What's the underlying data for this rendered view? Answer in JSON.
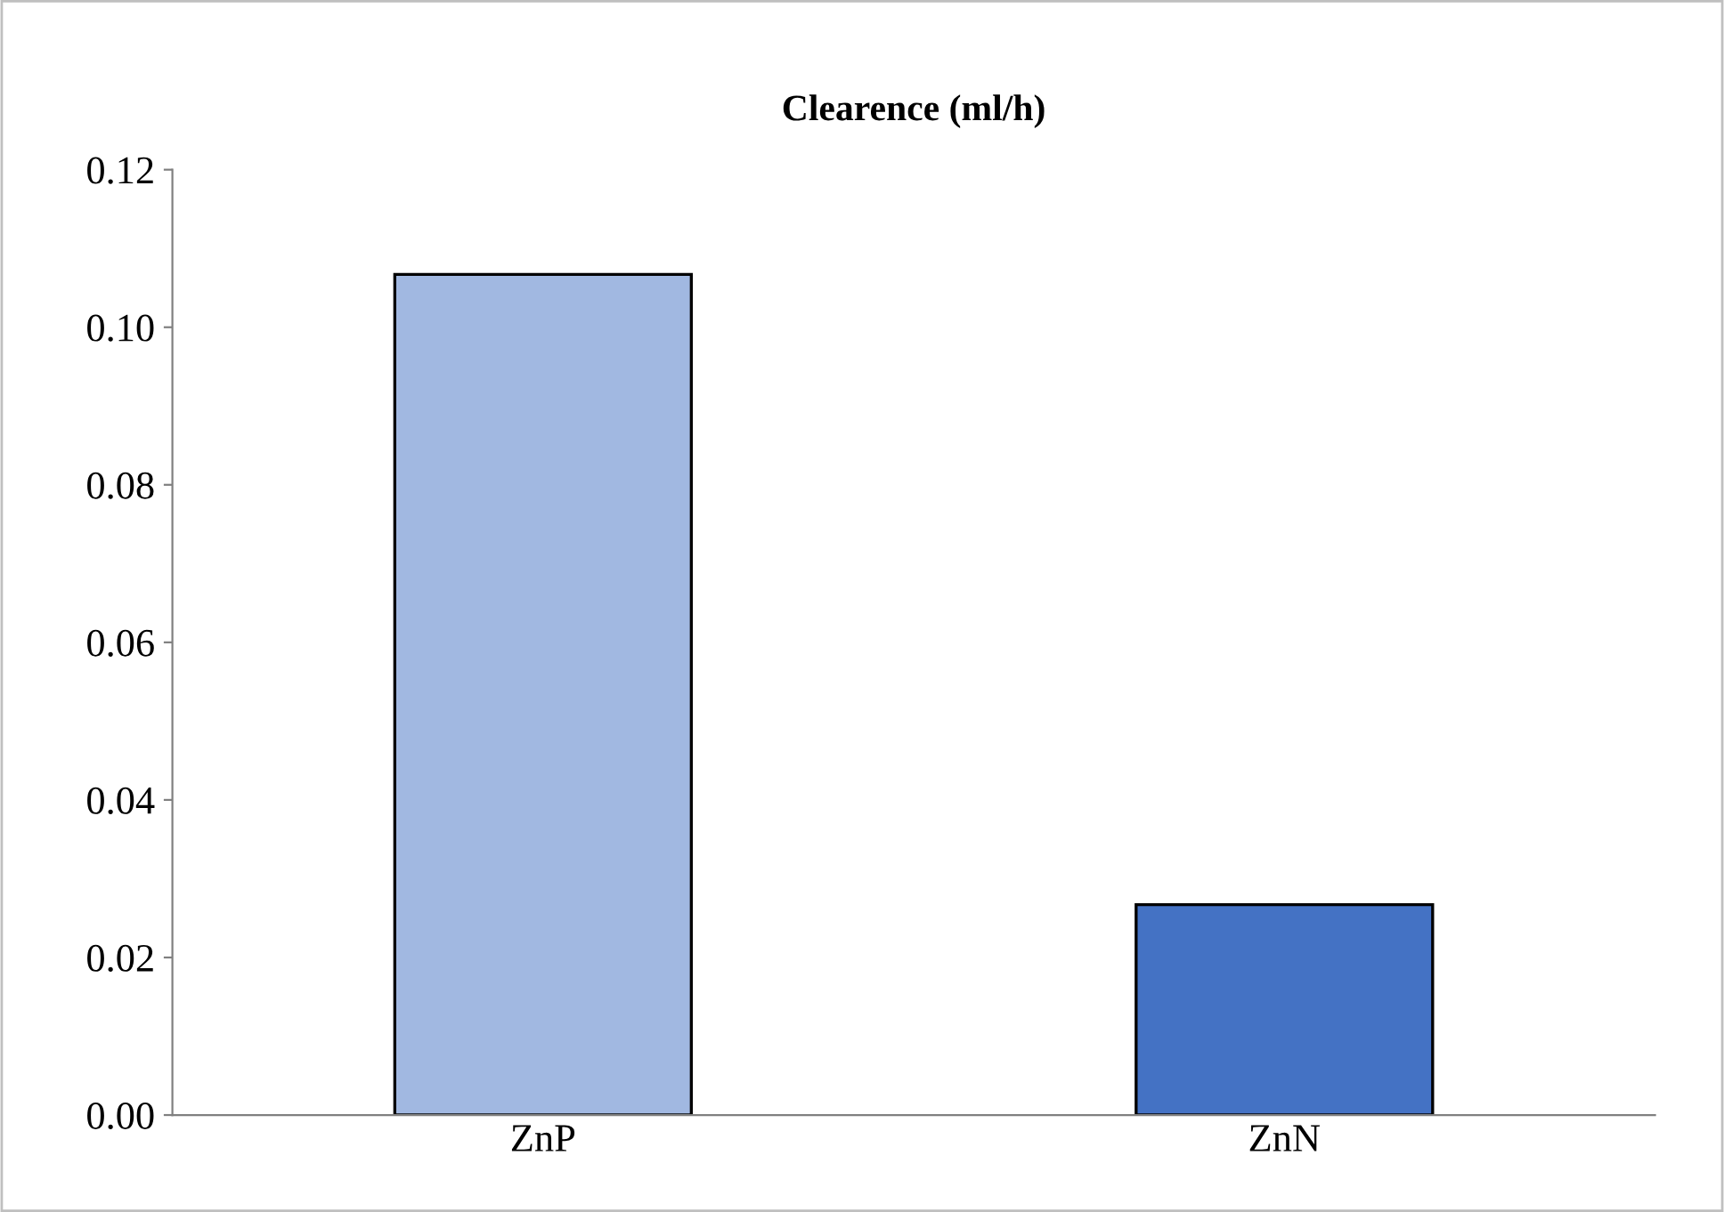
{
  "chart_data": {
    "type": "bar",
    "title": "Clearence (ml/h)",
    "categories": [
      "ZnP",
      "ZnN"
    ],
    "values": [
      0.1067,
      0.0267
    ],
    "colors": [
      "#a1b8e1",
      "#4472c4"
    ],
    "ylim": [
      0,
      0.12
    ],
    "yticks": [
      {
        "value": 0,
        "label": "0.00"
      },
      {
        "value": 0.02,
        "label": "0.02"
      },
      {
        "value": 0.04,
        "label": "0.04"
      },
      {
        "value": 0.06,
        "label": "0.06"
      },
      {
        "value": 0.08,
        "label": "0.08"
      },
      {
        "value": 0.1,
        "label": "0.10"
      },
      {
        "value": 0.12,
        "label": "0.12"
      }
    ],
    "grid": false,
    "legend": false
  }
}
